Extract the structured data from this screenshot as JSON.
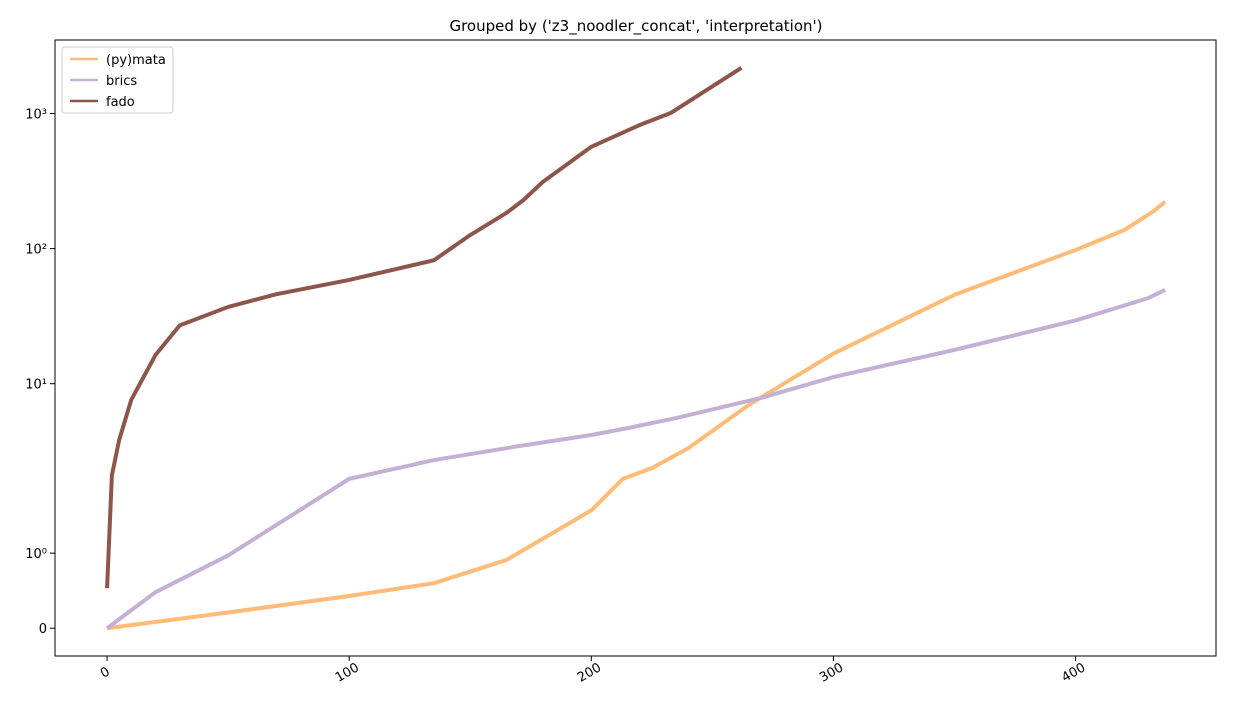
{
  "chart_data": {
    "type": "line",
    "title": "Grouped by ('z3_noodler_concat', 'interpretation')",
    "yscale": "symlog",
    "linthresh": 2,
    "xlim": [
      -21.5,
      458
    ],
    "ylim": [
      -0.37,
      3500
    ],
    "xticks": [
      0,
      100,
      200,
      300,
      400
    ],
    "yticks": [
      0,
      {
        "value": 1,
        "label": "10⁰"
      },
      {
        "value": 10,
        "label": "10¹"
      },
      {
        "value": 100,
        "label": "10²"
      },
      {
        "value": 1000,
        "label": "10³"
      }
    ],
    "legend": "upper left",
    "series": [
      {
        "name": "(py)mata",
        "color": "#ffbb78",
        "x": [
          0,
          50,
          100,
          135,
          165,
          200,
          213,
          225,
          240,
          265,
          300,
          350,
          400,
          420,
          432,
          437
        ],
        "values": [
          0,
          0.21,
          0.43,
          0.6,
          0.91,
          1.57,
          1.99,
          2.37,
          3.33,
          6.96,
          16.7,
          45.5,
          97.7,
          137,
          188,
          222
        ]
      },
      {
        "name": "brics",
        "color": "#c5b0d5",
        "x": [
          0,
          20,
          50,
          75,
          100,
          135,
          170,
          200,
          215,
          235,
          270,
          300,
          350,
          400,
          430,
          437
        ],
        "values": [
          0,
          0.48,
          0.97,
          1.48,
          1.99,
          2.72,
          3.45,
          4.17,
          4.69,
          5.57,
          7.84,
          11.2,
          17.8,
          29.4,
          43,
          49.4
        ]
      },
      {
        "name": "fado",
        "color": "#8c564b",
        "x": [
          0,
          2,
          5,
          10,
          20,
          30,
          50,
          70,
          100,
          135,
          150,
          165,
          172,
          180,
          200,
          220,
          233,
          262
        ],
        "values": [
          0.533,
          2.1,
          3.83,
          7.6,
          16.3,
          27,
          37,
          46,
          58.6,
          82,
          126,
          184,
          229,
          312,
          567,
          822,
          1013,
          2180
        ]
      }
    ]
  }
}
